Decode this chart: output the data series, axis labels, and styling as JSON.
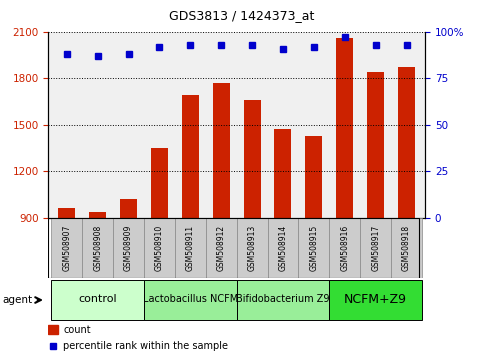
{
  "title": "GDS3813 / 1424373_at",
  "samples": [
    "GSM508907",
    "GSM508908",
    "GSM508909",
    "GSM508910",
    "GSM508911",
    "GSM508912",
    "GSM508913",
    "GSM508914",
    "GSM508915",
    "GSM508916",
    "GSM508917",
    "GSM508918"
  ],
  "bar_values": [
    960,
    940,
    1020,
    1350,
    1690,
    1770,
    1660,
    1470,
    1430,
    2060,
    1840,
    1870
  ],
  "percentile_values": [
    88,
    87,
    88,
    92,
    93,
    93,
    93,
    91,
    92,
    97,
    93,
    93
  ],
  "bar_color": "#cc2200",
  "dot_color": "#0000cc",
  "ylim_left": [
    900,
    2100
  ],
  "ylim_right": [
    0,
    100
  ],
  "yticks_left": [
    900,
    1200,
    1500,
    1800,
    2100
  ],
  "yticks_right": [
    0,
    25,
    50,
    75,
    100
  ],
  "group_configs": [
    [
      0,
      2,
      "#ccffcc",
      "control",
      8
    ],
    [
      3,
      5,
      "#99ee99",
      "Lactobacillus NCFM",
      7
    ],
    [
      6,
      8,
      "#99ee99",
      "Bifidobacterium Z9",
      7
    ],
    [
      9,
      11,
      "#33dd33",
      "NCFM+Z9",
      9
    ]
  ],
  "legend_count_color": "#cc2200",
  "legend_dot_color": "#0000cc",
  "agent_label": "agent",
  "sample_box_color": "#cccccc",
  "bg_plot": "#f0f0f0",
  "bg_fig": "#ffffff",
  "grid_color": "#000000",
  "tick_label_color_left": "#cc2200",
  "tick_label_color_right": "#0000cc"
}
